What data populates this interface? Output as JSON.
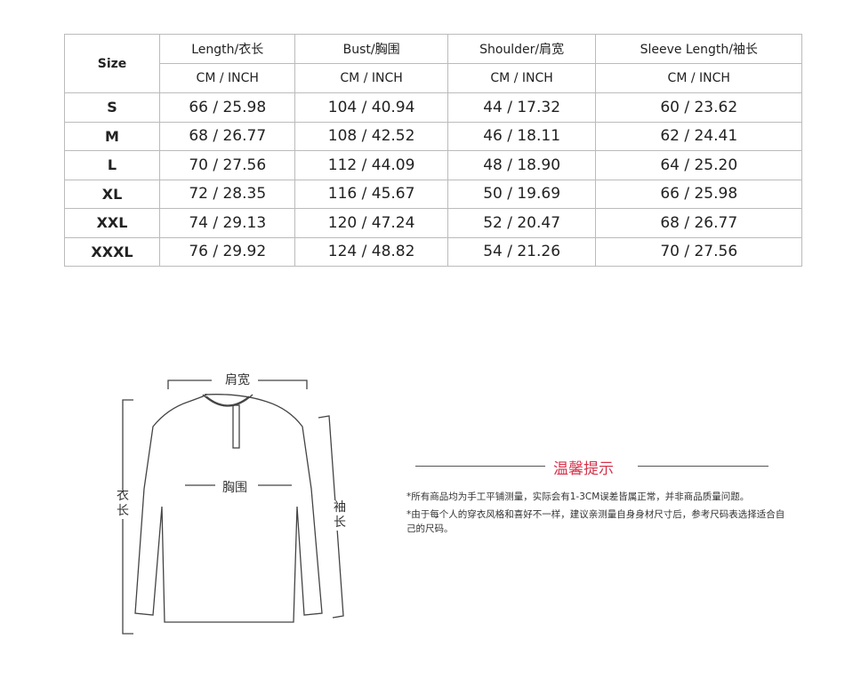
{
  "table": {
    "size_header": "Size",
    "columns": [
      "Length/衣长",
      "Bust/胸围",
      "Shoulder/肩宽",
      "Sleeve Length/袖长"
    ],
    "unit_label": "CM / INCH",
    "rows": [
      {
        "size": "S",
        "values": [
          "66 / 25.98",
          "104 / 40.94",
          "44 / 17.32",
          "60 / 23.62"
        ]
      },
      {
        "size": "M",
        "values": [
          "68 / 26.77",
          "108 / 42.52",
          "46 / 18.11",
          "62 / 24.41"
        ]
      },
      {
        "size": "L",
        "values": [
          "70 / 27.56",
          "112 / 44.09",
          "48 / 18.90",
          "64 / 25.20"
        ]
      },
      {
        "size": "XL",
        "values": [
          "72 / 28.35",
          "116 / 45.67",
          "50 / 19.69",
          "66 / 25.98"
        ]
      },
      {
        "size": "XXL",
        "values": [
          "74 / 29.13",
          "120 / 47.24",
          "52 / 20.47",
          "68 / 26.77"
        ]
      },
      {
        "size": "XXXL",
        "values": [
          "76 / 29.92",
          "124 / 48.82",
          "54 / 21.26",
          "70 / 27.56"
        ]
      }
    ]
  },
  "diagram": {
    "shoulder": "肩宽",
    "bust": "胸围",
    "length": "衣长",
    "sleeve": "袖长"
  },
  "tips": {
    "title": "温馨提示",
    "title_color": "#d6334b",
    "notes": [
      "*所有商品均为手工平铺测量，实际会有1-3CM误差皆属正常，并非商品质量问题。",
      "*由于每个人的穿衣风格和喜好不一样，建议亲测量自身身材尺寸后，参考尺码表选择适合自己的尺码。"
    ]
  }
}
